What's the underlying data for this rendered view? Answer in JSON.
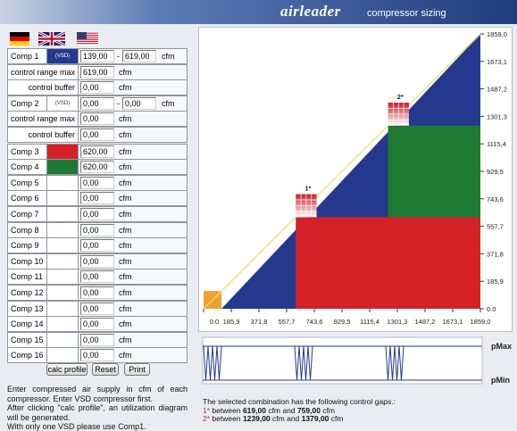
{
  "header": {
    "logo": "airleader",
    "subtitle": "compressor sizing"
  },
  "table": {
    "rows": [
      {
        "label": "Comp 1",
        "tag": "(VSD)",
        "color": "#24398e",
        "min": "139,00",
        "separator": "-",
        "max": "619,00",
        "unit": "cfm"
      },
      {
        "label": "control range max",
        "value": "619,00",
        "unit": "cfm"
      },
      {
        "label": "control buffer",
        "value": "0,00",
        "unit": "cfm"
      },
      {
        "label": "Comp 2",
        "tag": "(VSD)",
        "min": "0,00",
        "separator": "-",
        "max": "0,00",
        "unit": "cfm"
      },
      {
        "label": "control range max",
        "value": "0,00",
        "unit": "cfm"
      },
      {
        "label": "control buffer",
        "value": "0,00",
        "unit": "cfm"
      },
      {
        "label": "Comp 3",
        "color": "#d42027",
        "value": "620,00",
        "unit": "cfm"
      },
      {
        "label": "Comp 4",
        "color": "#1e7a32",
        "value": "620,00",
        "unit": "cfm"
      },
      {
        "label": "Comp 5",
        "value": "0,00",
        "unit": "cfm"
      },
      {
        "label": "Comp 6",
        "value": "0,00",
        "unit": "cfm"
      },
      {
        "label": "Comp 7",
        "value": "0,00",
        "unit": "cfm"
      },
      {
        "label": "Comp 8",
        "value": "0,00",
        "unit": "cfm"
      },
      {
        "label": "Comp 9",
        "value": "0,00",
        "unit": "cfm"
      },
      {
        "label": "Comp 10",
        "value": "0,00",
        "unit": "cfm"
      },
      {
        "label": "Comp 11",
        "value": "0,00",
        "unit": "cfm"
      },
      {
        "label": "Comp 12",
        "value": "0,00",
        "unit": "cfm"
      },
      {
        "label": "Comp 13",
        "value": "0,00",
        "unit": "cfm"
      },
      {
        "label": "Comp 14",
        "value": "0,00",
        "unit": "cfm"
      },
      {
        "label": "Comp 15",
        "value": "0,00",
        "unit": "cfm"
      },
      {
        "label": "Comp 16",
        "value": "0,00",
        "unit": "cfm"
      }
    ]
  },
  "buttons": [
    "calc profile",
    "Reset",
    "Print"
  ],
  "instructions": [
    "Enter compressed air supply in cfm of each compressor. Enter VSD compressor first.",
    "After clicking \"calc profile\", an utilization diagram will be generated.",
    "With only one VSD please use Comp1."
  ],
  "chart": {
    "xlim": [
      0,
      1859
    ],
    "ylim": [
      0,
      1859
    ],
    "xticks": [
      {
        "value": 0,
        "label": "0.0"
      },
      {
        "value": 185.9,
        "label": "185,9"
      },
      {
        "value": 371.8,
        "label": "371,8"
      },
      {
        "value": 557.7,
        "label": "557,7"
      },
      {
        "value": 743.6,
        "label": "743,6"
      },
      {
        "value": 929.5,
        "label": "929,5"
      },
      {
        "value": 1115.4,
        "label": "1115,4"
      },
      {
        "value": 1301.3,
        "label": "1301,3"
      },
      {
        "value": 1487.2,
        "label": "1487,2"
      },
      {
        "value": 1673.1,
        "label": "1673,1"
      },
      {
        "value": 1859,
        "label": "1859,0"
      }
    ],
    "yticks": [
      {
        "value": 0,
        "label": "0.0"
      },
      {
        "value": 185.9,
        "label": "185,9"
      },
      {
        "value": 371.8,
        "label": "371,8"
      },
      {
        "value": 557.7,
        "label": "557,7"
      },
      {
        "value": 743.6,
        "label": "743,6"
      },
      {
        "value": 929.5,
        "label": "929,5"
      },
      {
        "value": 1115.4,
        "label": "1115,4"
      },
      {
        "value": 1301.3,
        "label": "1301,3"
      },
      {
        "value": 1487.2,
        "label": "1487,2"
      },
      {
        "value": 1673.1,
        "label": "1673,1"
      },
      {
        "value": 1859,
        "label": "1859,0"
      }
    ],
    "vsd": {
      "color": "#24398e",
      "x": [
        120,
        1859
      ],
      "y": [
        0,
        1859
      ]
    },
    "regions": [
      {
        "color": "#f0a030",
        "x": [
          0,
          120
        ],
        "y": [
          0,
          120
        ]
      },
      {
        "color": "#d42027",
        "x": [
          619,
          1859
        ],
        "y": [
          0,
          620
        ]
      },
      {
        "color": "#1e7a32",
        "x": [
          1239,
          1859
        ],
        "y": [
          620,
          1239
        ]
      }
    ],
    "line": {
      "color": "#e8e070",
      "x": [
        0,
        1859
      ],
      "y": [
        0,
        1859
      ]
    },
    "gap_markers": [
      {
        "label": "1*",
        "x": [
          619,
          759
        ],
        "y": [
          620,
          775
        ]
      },
      {
        "label": "2*",
        "x": [
          1239,
          1379
        ],
        "y": [
          1239,
          1394
        ]
      }
    ]
  },
  "pressure": {
    "max_label": "pMax",
    "min_label": "pMin"
  },
  "gaps": {
    "intro": "The selected combination has the following control gaps.:",
    "items": [
      {
        "mark": "1*",
        "text": "between",
        "from": "619,00",
        "mid": "cfm and",
        "to": "759,00",
        "end": "cfm"
      },
      {
        "mark": "2*",
        "text": "between",
        "from": "1239,00",
        "mid": "cfm and",
        "to": "1379,00",
        "end": "cfm"
      }
    ]
  }
}
